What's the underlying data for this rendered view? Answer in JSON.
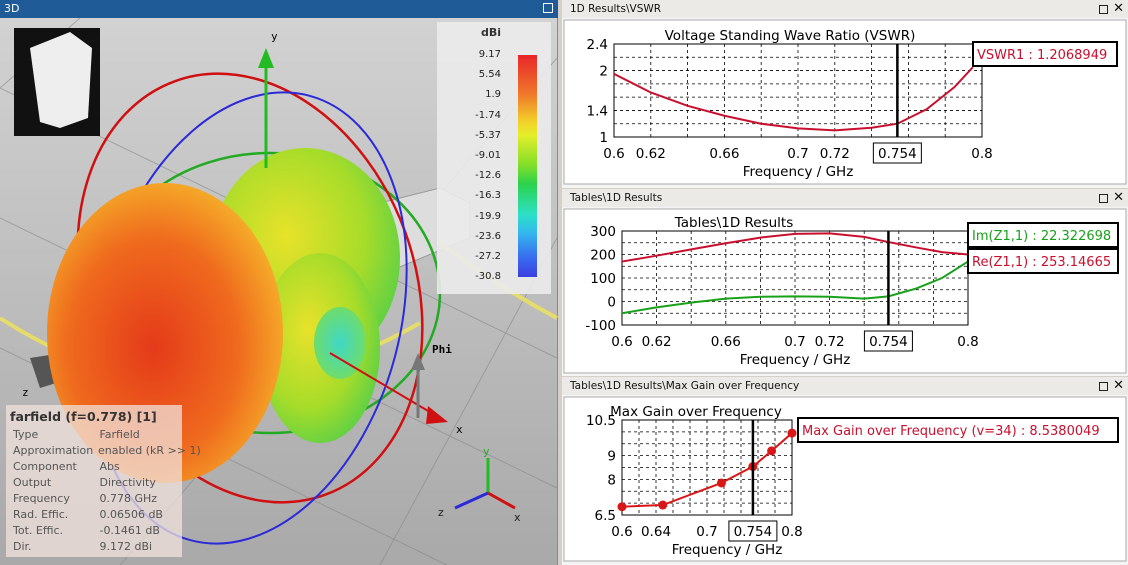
{
  "view3d": {
    "title": "3D",
    "axes": {
      "x": "x",
      "y": "y",
      "z": "z",
      "phi": "Phi"
    },
    "colorbar": {
      "unit": "dBi",
      "labels": [
        "9.17",
        "5.54",
        "1.9",
        "-1.74",
        "-5.37",
        "-9.01",
        "-12.6",
        "-16.3",
        "-19.9",
        "-23.6",
        "-27.2",
        "-30.8"
      ]
    },
    "info": {
      "header": "farfield (f=0.778) [1]",
      "rows": [
        {
          "k": "Type",
          "v": "Farfield"
        },
        {
          "k": "Approximation",
          "v": "enabled (kR >> 1)"
        },
        {
          "k": "Component",
          "v": "Abs"
        },
        {
          "k": "Output",
          "v": "Directivity"
        },
        {
          "k": "Frequency",
          "v": "0.778 GHz"
        },
        {
          "k": "Rad. Effic.",
          "v": "0.06506 dB"
        },
        {
          "k": "Tot. Effic.",
          "v": "-0.1461 dB"
        },
        {
          "k": "Dir.",
          "v": "9.172 dBi"
        }
      ]
    },
    "triad": {
      "x": "x",
      "y": "y",
      "z": "z"
    }
  },
  "panels": [
    {
      "title": "1D Results\\VSWR"
    },
    {
      "title": "Tables\\1D Results"
    },
    {
      "title": "Tables\\1D Results\\Max Gain over Frequency"
    }
  ],
  "chart_data": [
    {
      "type": "line",
      "title": "Voltage Standing Wave Ratio (VSWR)",
      "xlabel": "Frequency / GHz",
      "ylabel": "",
      "xlim": [
        0.6,
        0.8
      ],
      "ylim": [
        1,
        2.4
      ],
      "xticks": [
        "0.6",
        "0.62",
        "0.66",
        "0.7",
        "0.72",
        "0.8"
      ],
      "yticks": [
        "1",
        "1.4",
        "2",
        "2.4"
      ],
      "marker_x": "0.754",
      "series": [
        {
          "name": "VSWR1",
          "color": "#c8102e",
          "x": [
            0.6,
            0.62,
            0.64,
            0.66,
            0.68,
            0.7,
            0.72,
            0.74,
            0.754,
            0.77,
            0.785,
            0.795
          ],
          "y": [
            1.95,
            1.67,
            1.47,
            1.32,
            1.2,
            1.13,
            1.1,
            1.14,
            1.2,
            1.42,
            1.75,
            2.05
          ]
        }
      ],
      "legend": [
        {
          "text": "VSWR1 : 1.2068949",
          "color": "#c8102e"
        }
      ]
    },
    {
      "type": "line",
      "title": "Tables\\1D Results",
      "xlabel": "Frequency / GHz",
      "ylabel": "",
      "xlim": [
        0.6,
        0.8
      ],
      "ylim": [
        -100,
        300
      ],
      "xticks": [
        "0.6",
        "0.62",
        "0.66",
        "0.7",
        "0.72",
        "0.8"
      ],
      "yticks": [
        "-100",
        "0",
        "100",
        "200",
        "300"
      ],
      "marker_x": "0.754",
      "series": [
        {
          "name": "Re(Z1,1)",
          "color": "#c8102e",
          "x": [
            0.6,
            0.62,
            0.64,
            0.66,
            0.68,
            0.7,
            0.72,
            0.74,
            0.754,
            0.77,
            0.785,
            0.8
          ],
          "y": [
            170,
            195,
            222,
            248,
            272,
            288,
            290,
            275,
            253,
            230,
            210,
            200
          ]
        },
        {
          "name": "Im(Z1,1)",
          "color": "#1aa11a",
          "x": [
            0.6,
            0.62,
            0.64,
            0.66,
            0.68,
            0.7,
            0.72,
            0.74,
            0.754,
            0.77,
            0.785,
            0.8
          ],
          "y": [
            -50,
            -25,
            -5,
            12,
            20,
            22,
            20,
            12,
            22,
            55,
            100,
            170
          ]
        }
      ],
      "legend": [
        {
          "text": "Im(Z1,1) : 22.322698",
          "color": "#1aa11a"
        },
        {
          "text": "Re(Z1,1) : 253.14665",
          "color": "#c8102e"
        }
      ]
    },
    {
      "type": "line",
      "title": "Max Gain over Frequency",
      "xlabel": "Frequency / GHz",
      "ylabel": "",
      "xlim": [
        0.6,
        0.8
      ],
      "ylim": [
        6.5,
        10.5
      ],
      "xticks": [
        "0.6",
        "0.64",
        "0.7",
        "0.8"
      ],
      "yticks": [
        "6.5",
        "8",
        "9",
        "10.5"
      ],
      "marker_x": "0.754",
      "series": [
        {
          "name": "Max Gain over Frequency",
          "color": "#d81818",
          "points": true,
          "x": [
            0.6,
            0.648,
            0.717,
            0.754,
            0.776,
            0.8
          ],
          "y": [
            6.85,
            6.92,
            7.85,
            8.54,
            9.2,
            9.95
          ]
        }
      ],
      "legend": [
        {
          "text": "Max Gain over Frequency (v=34) : 8.5380049",
          "color": "#c8102e"
        }
      ]
    }
  ]
}
